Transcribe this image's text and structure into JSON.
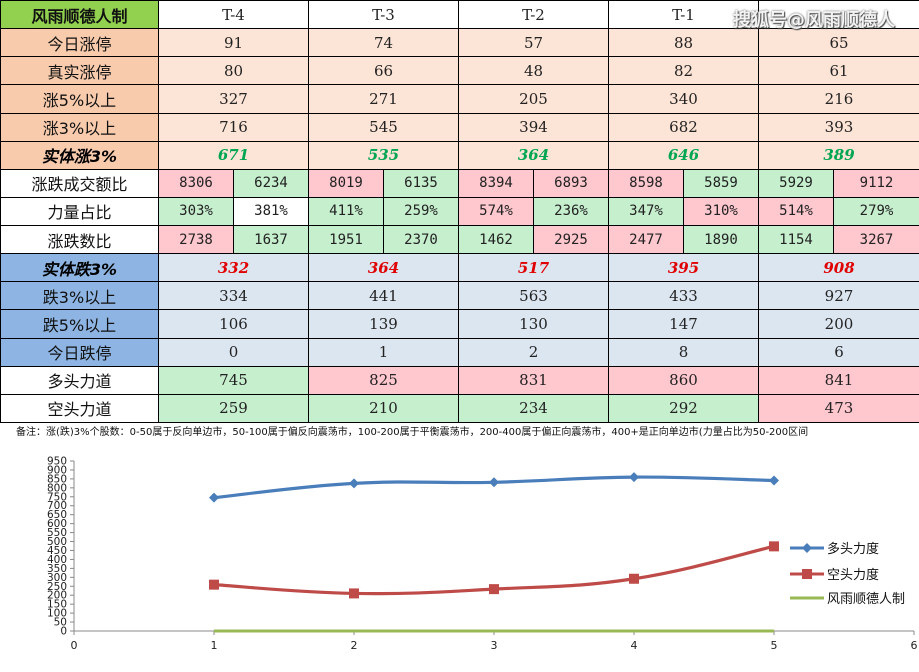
{
  "table": {
    "title": "风雨顺德人制",
    "headers": [
      "T-4",
      "T-3",
      "T-2",
      "T-1",
      ""
    ],
    "rows": [
      {
        "label": "今日涨停",
        "values": [
          "91",
          "74",
          "57",
          "88",
          "65"
        ]
      },
      {
        "label": "真实涨停",
        "values": [
          "80",
          "66",
          "48",
          "82",
          "61"
        ]
      },
      {
        "label": "涨5%以上",
        "values": [
          "327",
          "271",
          "205",
          "340",
          "216"
        ]
      },
      {
        "label": "涨3%以上",
        "values": [
          "716",
          "545",
          "394",
          "682",
          "393"
        ]
      },
      {
        "label": "实体涨3%",
        "values": [
          "671",
          "535",
          "364",
          "646",
          "389"
        ]
      },
      {
        "label": "涨跌成交额比",
        "pairs": [
          [
            "8306",
            "6234"
          ],
          [
            "8019",
            "6135"
          ],
          [
            "8394",
            "6893"
          ],
          [
            "8598",
            "5859"
          ],
          [
            "5929",
            "9112"
          ]
        ]
      },
      {
        "label": "力量占比",
        "pairs": [
          [
            "303%",
            "381%"
          ],
          [
            "411%",
            "259%"
          ],
          [
            "574%",
            "236%"
          ],
          [
            "347%",
            "310%"
          ],
          [
            "514%",
            "279%"
          ]
        ]
      },
      {
        "label": "涨跌数比",
        "pairs": [
          [
            "2738",
            "1637"
          ],
          [
            "1951",
            "2370"
          ],
          [
            "1462",
            "2925"
          ],
          [
            "2477",
            "1890"
          ],
          [
            "1154",
            "3267"
          ]
        ]
      },
      {
        "label": "实体跌3%",
        "values": [
          "332",
          "364",
          "517",
          "395",
          "908"
        ]
      },
      {
        "label": "跌3%以上",
        "values": [
          "334",
          "441",
          "563",
          "433",
          "927"
        ]
      },
      {
        "label": "跌5%以上",
        "values": [
          "106",
          "139",
          "130",
          "147",
          "200"
        ]
      },
      {
        "label": "今日跌停",
        "values": [
          "0",
          "1",
          "2",
          "8",
          "6"
        ]
      },
      {
        "label": "多头力道",
        "values": [
          "745",
          "825",
          "831",
          "860",
          "841"
        ]
      },
      {
        "label": "空头力道",
        "values": [
          "259",
          "210",
          "234",
          "292",
          "473"
        ]
      }
    ]
  },
  "note": "备注：涨(跌)3%个股数：0-50属于反向单边市，50-100属于偏反向震荡市，100-200属于平衡震荡市，200-400属于偏正向震荡市，400+是正向单边市(力量占比为50-200区间",
  "watermark": "搜狐号@风雨顺德人",
  "colors": {
    "title_green": "#92d050",
    "orange_label": "#f8cbad",
    "orange_cell": "#fce4d6",
    "blue_label": "#8db4e2",
    "blue_cell": "#dce6f1",
    "pink_cell": "#ffc7ce",
    "green_cell": "#c6efce",
    "bull_line": "#4a7ebb",
    "bear_line": "#be4b48",
    "third_line": "#98b954"
  },
  "chart_data": {
    "type": "line",
    "x_ticks": [
      "0",
      "1",
      "2",
      "3",
      "4",
      "5",
      "6"
    ],
    "y_ticks": [
      "0",
      "50",
      "100",
      "150",
      "200",
      "250",
      "300",
      "350",
      "400",
      "450",
      "500",
      "550",
      "600",
      "650",
      "700",
      "750",
      "800",
      "850",
      "900",
      "950"
    ],
    "xlim": [
      0,
      6
    ],
    "ylim": [
      0,
      950
    ],
    "legend_position": "right",
    "grid": false,
    "series": [
      {
        "name": "多头力度",
        "x": [
          1,
          2,
          3,
          4,
          5
        ],
        "values": [
          745,
          825,
          831,
          860,
          841
        ],
        "color": "#4a7ebb",
        "marker": "diamond"
      },
      {
        "name": "空头力度",
        "x": [
          1,
          2,
          3,
          4,
          5
        ],
        "values": [
          259,
          210,
          234,
          292,
          473
        ],
        "color": "#be4b48",
        "marker": "square"
      },
      {
        "name": "风雨顺德人制",
        "x": [
          1,
          2,
          3,
          4,
          5
        ],
        "values": [
          0,
          0,
          0,
          0,
          0
        ],
        "color": "#98b954",
        "marker": "none"
      }
    ]
  }
}
